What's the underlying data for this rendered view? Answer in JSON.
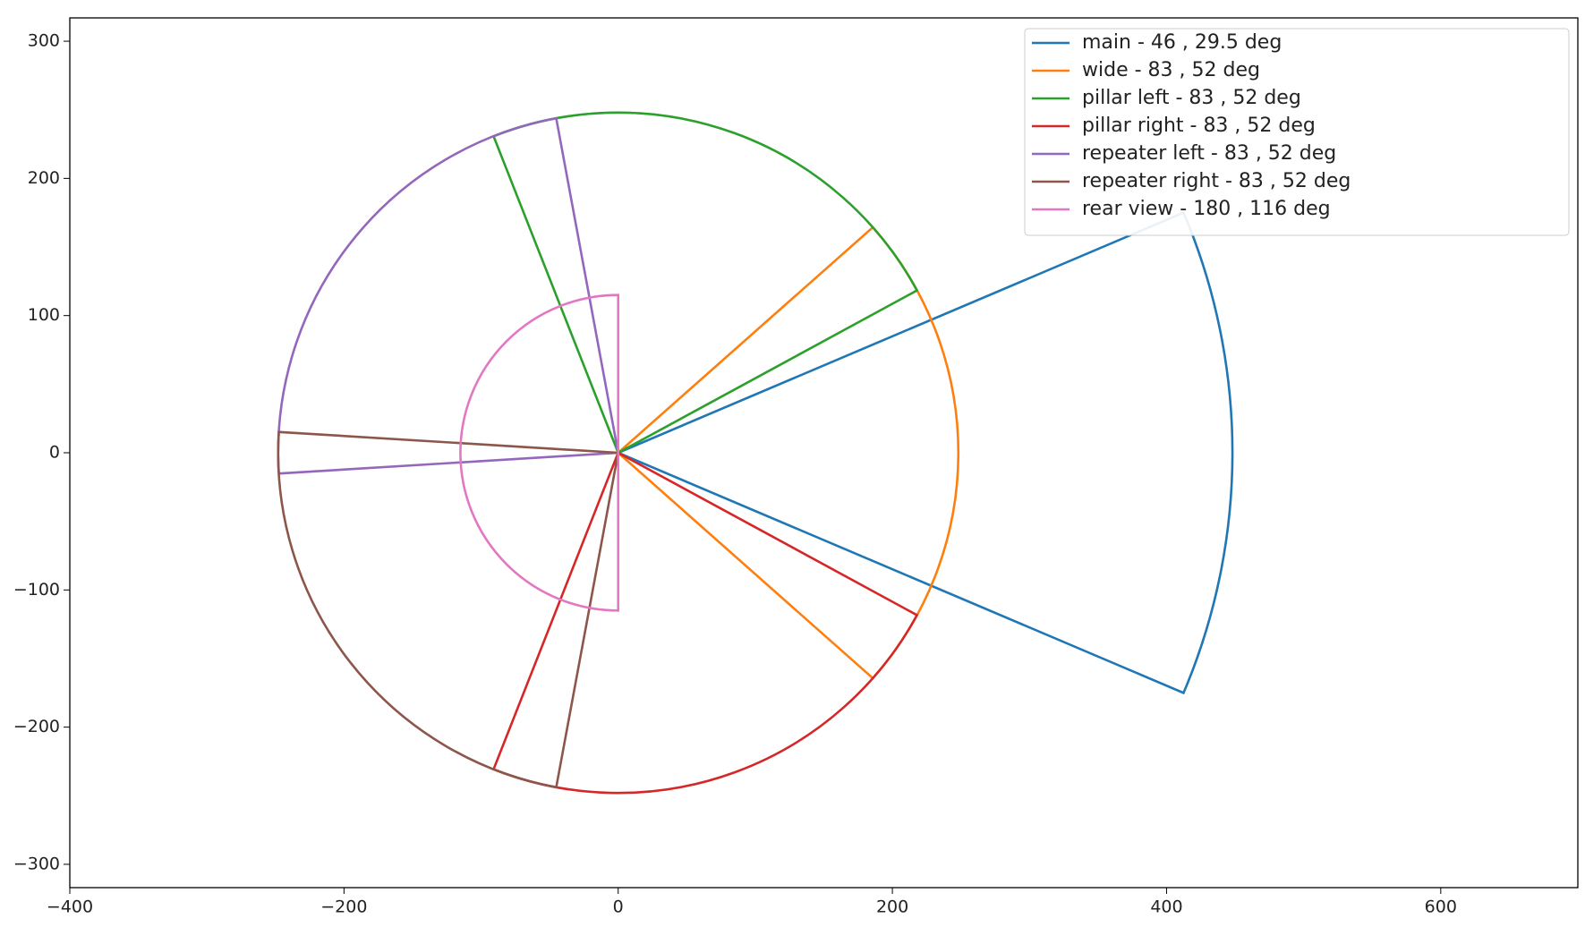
{
  "chart_data": {
    "type": "wedge",
    "xlim": [
      -400,
      700
    ],
    "ylim": [
      -317,
      317
    ],
    "xticks": [
      {
        "value": -400,
        "label": "−400"
      },
      {
        "value": -200,
        "label": "−200"
      },
      0,
      200,
      400,
      600
    ],
    "yticks": [
      {
        "value": -300,
        "label": "−300"
      },
      {
        "value": -200,
        "label": "−200"
      },
      {
        "value": -100,
        "label": "−100"
      },
      0,
      100,
      200,
      300
    ],
    "legend": "upper right",
    "series": [
      {
        "name": "main - 46 , 29.5 deg",
        "color": "#1f77b4",
        "radius": 448,
        "theta1": -23,
        "theta2": 23
      },
      {
        "name": "wide - 83 , 52 deg",
        "color": "#ff7f0e",
        "radius": 248,
        "theta1": -41.5,
        "theta2": 41.5
      },
      {
        "name": "pillar left - 83 , 52 deg",
        "color": "#2ca02c",
        "radius": 248,
        "theta1": 28.5,
        "theta2": 111.5
      },
      {
        "name": "pillar right - 83 , 52 deg",
        "color": "#d62728",
        "radius": 248,
        "theta1": -111.5,
        "theta2": -28.5
      },
      {
        "name": "repeater left - 83 , 52 deg",
        "color": "#9467bd",
        "radius": 248,
        "theta1": 100.5,
        "theta2": 183.5
      },
      {
        "name": "repeater right - 83 , 52 deg",
        "color": "#8c564b",
        "radius": 248,
        "theta1": 176.5,
        "theta2": 259.5
      },
      {
        "name": "rear view - 180 , 116 deg",
        "color": "#e377c2",
        "radius": 115,
        "theta1": 90,
        "theta2": 270
      }
    ]
  }
}
